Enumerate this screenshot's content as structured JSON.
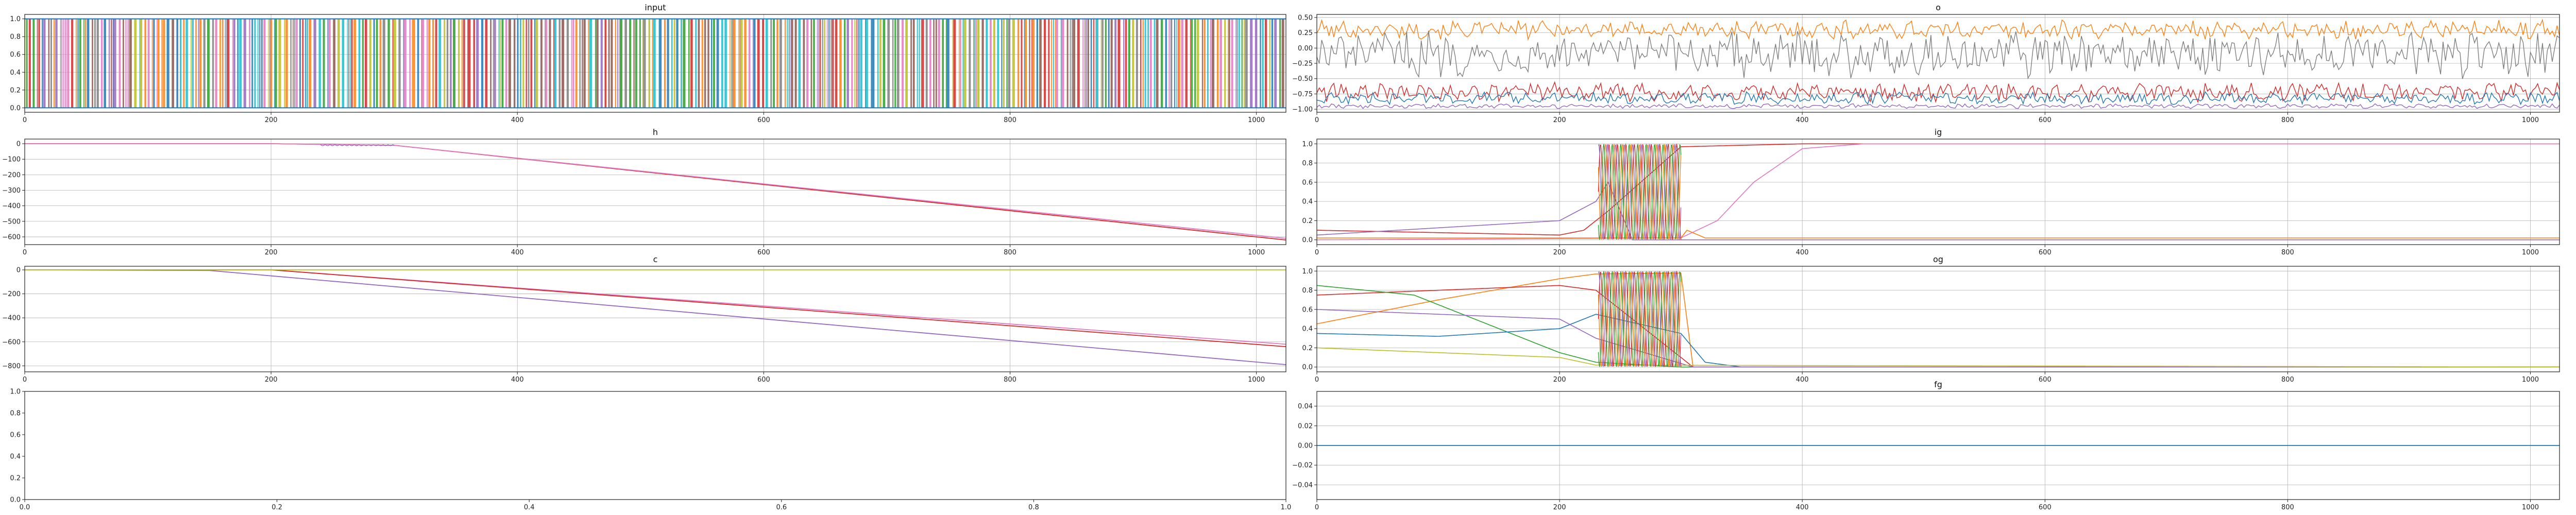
{
  "colors": {
    "palette": [
      "#1f77b4",
      "#ff7f0e",
      "#2ca02c",
      "#d62728",
      "#9467bd",
      "#8c564b",
      "#e377c2",
      "#7f7f7f",
      "#bcbd22",
      "#17becf"
    ],
    "grid": "#b0b0b0",
    "frame": "#222222"
  },
  "chart_data": [
    {
      "id": "input",
      "type": "line",
      "title": "input",
      "grid": true,
      "xlim": [
        0,
        1024
      ],
      "ylim": [
        -0.05,
        1.05
      ],
      "xticks": [
        "0",
        "200",
        "400",
        "600",
        "800",
        "1000"
      ],
      "xtick_values": [
        0,
        200,
        400,
        600,
        800,
        1000
      ],
      "yticks": [
        "0.0",
        "0.2",
        "0.4",
        "0.6",
        "0.8",
        "1.0"
      ],
      "ytick_values": [
        0.0,
        0.2,
        0.4,
        0.6,
        0.8,
        1.0
      ],
      "description": "dense binary (0/1) multi-series signal switching many times across all x"
    },
    {
      "id": "o",
      "type": "line",
      "title": "o",
      "grid": true,
      "xlim": [
        0,
        1024
      ],
      "ylim": [
        -1.05,
        0.55
      ],
      "xticks": [
        "0",
        "200",
        "400",
        "600",
        "800",
        "1000"
      ],
      "xtick_values": [
        0,
        200,
        400,
        600,
        800,
        1000
      ],
      "yticks": [
        "−1.00",
        "−0.75",
        "−0.50",
        "−0.25",
        "0.00",
        "0.25",
        "0.50"
      ],
      "ytick_values": [
        -1.0,
        -0.75,
        -0.5,
        -0.25,
        0.0,
        0.25,
        0.5
      ],
      "series": [
        {
          "color_index": 1,
          "mean": 0.3,
          "amp": 0.12
        },
        {
          "color_index": 7,
          "mean": -0.1,
          "amp": 0.3
        },
        {
          "color_index": 3,
          "mean": -0.72,
          "amp": 0.12
        },
        {
          "color_index": 0,
          "mean": -0.82,
          "amp": 0.08
        },
        {
          "color_index": 4,
          "mean": -0.95,
          "amp": 0.03
        }
      ]
    },
    {
      "id": "h",
      "type": "line",
      "title": "h",
      "grid": true,
      "xlim": [
        0,
        1024
      ],
      "ylim": [
        -650,
        30
      ],
      "xticks": [
        "0",
        "200",
        "400",
        "600",
        "800",
        "1000"
      ],
      "xtick_values": [
        0,
        200,
        400,
        600,
        800,
        1000
      ],
      "yticks": [
        "−600",
        "−500",
        "−400",
        "−300",
        "−200",
        "−100",
        "0"
      ],
      "ytick_values": [
        -600,
        -500,
        -400,
        -300,
        -200,
        -100,
        0
      ],
      "series": [
        {
          "color_index": 3,
          "points": [
            [
              0,
              0
            ],
            [
              200,
              0
            ],
            [
              250,
              -5
            ],
            [
              300,
              -10
            ],
            [
              1024,
              -620
            ]
          ]
        },
        {
          "color_index": 6,
          "points": [
            [
              0,
              0
            ],
            [
              200,
              0
            ],
            [
              250,
              -5
            ],
            [
              300,
              -10
            ],
            [
              1024,
              -610
            ]
          ]
        }
      ]
    },
    {
      "id": "ig",
      "type": "line",
      "title": "ig",
      "grid": true,
      "xlim": [
        0,
        1024
      ],
      "ylim": [
        -0.05,
        1.05
      ],
      "xticks": [
        "0",
        "200",
        "400",
        "600",
        "800",
        "1000"
      ],
      "xtick_values": [
        0,
        200,
        400,
        600,
        800,
        1000
      ],
      "yticks": [
        "0.0",
        "0.2",
        "0.4",
        "0.6",
        "0.8",
        "1.0"
      ],
      "ytick_values": [
        0.0,
        0.2,
        0.4,
        0.6,
        0.8,
        1.0
      ],
      "series": [
        {
          "color_index": 3,
          "points": [
            [
              0,
              0.1
            ],
            [
              200,
              0.05
            ],
            [
              220,
              0.1
            ],
            [
              240,
              0.3
            ],
            [
              300,
              0.97
            ],
            [
              400,
              1.0
            ],
            [
              1024,
              1.0
            ]
          ]
        },
        {
          "color_index": 6,
          "points": [
            [
              0,
              0.0
            ],
            [
              300,
              0.02
            ],
            [
              330,
              0.2
            ],
            [
              360,
              0.6
            ],
            [
              400,
              0.95
            ],
            [
              450,
              1.0
            ],
            [
              1024,
              1.0
            ]
          ]
        },
        {
          "color_index": 1,
          "points": [
            [
              0,
              0.02
            ],
            [
              300,
              0.02
            ],
            [
              305,
              0.1
            ],
            [
              320,
              0.02
            ],
            [
              1024,
              0.02
            ]
          ]
        },
        {
          "color_index": 4,
          "points": [
            [
              0,
              0.05
            ],
            [
              200,
              0.2
            ],
            [
              230,
              0.4
            ],
            [
              240,
              0.6
            ],
            [
              260,
              0.0
            ],
            [
              1024,
              0.0
            ]
          ]
        }
      ]
    },
    {
      "id": "c",
      "type": "line",
      "title": "c",
      "grid": true,
      "xlim": [
        0,
        1024
      ],
      "ylim": [
        -850,
        30
      ],
      "xticks": [
        "0",
        "200",
        "400",
        "600",
        "800",
        "1000"
      ],
      "xtick_values": [
        0,
        200,
        400,
        600,
        800,
        1000
      ],
      "yticks": [
        "−800",
        "−600",
        "−400",
        "−200",
        "0"
      ],
      "ytick_values": [
        -800,
        -600,
        -400,
        -200,
        0
      ],
      "series": [
        {
          "color_index": 6,
          "points": [
            [
              0,
              0
            ],
            [
              200,
              0
            ],
            [
              1024,
              -620
            ]
          ]
        },
        {
          "color_index": 3,
          "points": [
            [
              0,
              0
            ],
            [
              200,
              0
            ],
            [
              1024,
              -640
            ]
          ]
        },
        {
          "color_index": 4,
          "points": [
            [
              0,
              0
            ],
            [
              150,
              -5
            ],
            [
              1024,
              -790
            ]
          ]
        },
        {
          "color_index": 8,
          "points": [
            [
              0,
              0
            ],
            [
              1024,
              0
            ]
          ]
        }
      ]
    },
    {
      "id": "og",
      "type": "line",
      "title": "og",
      "grid": true,
      "xlim": [
        0,
        1024
      ],
      "ylim": [
        -0.05,
        1.05
      ],
      "xticks": [
        "0",
        "200",
        "400",
        "600",
        "800",
        "1000"
      ],
      "xtick_values": [
        0,
        200,
        400,
        600,
        800,
        1000
      ],
      "yticks": [
        "0.0",
        "0.2",
        "0.4",
        "0.6",
        "0.8",
        "1.0"
      ],
      "ytick_values": [
        0.0,
        0.2,
        0.4,
        0.6,
        0.8,
        1.0
      ],
      "series": [
        {
          "color_index": 1,
          "points": [
            [
              0,
              0.45
            ],
            [
              100,
              0.7
            ],
            [
              200,
              0.92
            ],
            [
              230,
              0.97
            ],
            [
              300,
              0.98
            ],
            [
              310,
              0.0
            ],
            [
              1024,
              0.0
            ]
          ]
        },
        {
          "color_index": 3,
          "points": [
            [
              0,
              0.75
            ],
            [
              100,
              0.8
            ],
            [
              200,
              0.85
            ],
            [
              230,
              0.8
            ],
            [
              310,
              0.0
            ],
            [
              1024,
              0.0
            ]
          ]
        },
        {
          "color_index": 2,
          "points": [
            [
              0,
              0.85
            ],
            [
              80,
              0.75
            ],
            [
              150,
              0.4
            ],
            [
              200,
              0.15
            ],
            [
              230,
              0.05
            ],
            [
              300,
              0.0
            ],
            [
              1024,
              0.0
            ]
          ]
        },
        {
          "color_index": 0,
          "points": [
            [
              0,
              0.35
            ],
            [
              100,
              0.32
            ],
            [
              200,
              0.4
            ],
            [
              230,
              0.55
            ],
            [
              300,
              0.35
            ],
            [
              320,
              0.05
            ],
            [
              350,
              0.0
            ],
            [
              1024,
              0.0
            ]
          ]
        },
        {
          "color_index": 4,
          "points": [
            [
              0,
              0.6
            ],
            [
              200,
              0.5
            ],
            [
              230,
              0.3
            ],
            [
              310,
              0.0
            ],
            [
              1024,
              0.0
            ]
          ]
        },
        {
          "color_index": 8,
          "points": [
            [
              0,
              0.2
            ],
            [
              200,
              0.1
            ],
            [
              230,
              0.02
            ],
            [
              1024,
              0.0
            ]
          ]
        }
      ]
    },
    {
      "id": "empty",
      "type": "line",
      "title": "",
      "grid": false,
      "xlim": [
        0,
        1
      ],
      "ylim": [
        0,
        1
      ],
      "xticks": [
        "0.0",
        "0.2",
        "0.4",
        "0.6",
        "0.8",
        "1.0"
      ],
      "xtick_values": [
        0.0,
        0.2,
        0.4,
        0.6,
        0.8,
        1.0
      ],
      "yticks": [
        "0.0",
        "0.2",
        "0.4",
        "0.6",
        "0.8",
        "1.0"
      ],
      "ytick_values": [
        0.0,
        0.2,
        0.4,
        0.6,
        0.8,
        1.0
      ],
      "series": []
    },
    {
      "id": "fg",
      "type": "line",
      "title": "fg",
      "grid": true,
      "xlim": [
        0,
        1024
      ],
      "ylim": [
        -0.055,
        0.055
      ],
      "xticks": [
        "0",
        "200",
        "400",
        "600",
        "800",
        "1000"
      ],
      "xtick_values": [
        0,
        200,
        400,
        600,
        800,
        1000
      ],
      "yticks": [
        "−0.04",
        "−0.02",
        "0.00",
        "0.02",
        "0.04"
      ],
      "ytick_values": [
        -0.04,
        -0.02,
        0.0,
        0.02,
        0.04
      ],
      "series": [
        {
          "color_index": 0,
          "points": [
            [
              0,
              0
            ],
            [
              1024,
              0
            ]
          ]
        }
      ]
    }
  ]
}
